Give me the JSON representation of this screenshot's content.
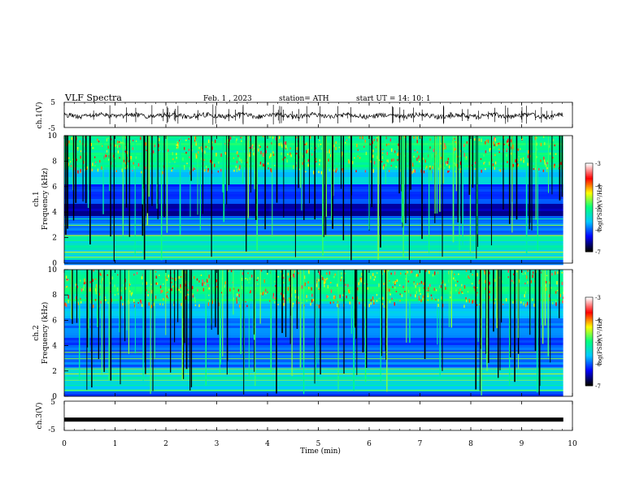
{
  "header": {
    "title": "VLF Spectra",
    "date": "Feb. 1 , 2023",
    "station": "station= ATH",
    "start": "start UT = 14: 10: 1"
  },
  "chart_data": [
    {
      "type": "line",
      "name": "ch1-waveform",
      "ylabel": "ch.1(V)",
      "yticks": [
        "5",
        "-5"
      ],
      "ylim": [
        -5,
        5
      ],
      "xlim": [
        0,
        10
      ],
      "visible_until_min": 9.82
    },
    {
      "type": "heatmap",
      "name": "ch1-spectrogram",
      "ylabel_top": "ch.1",
      "ylabel": "Frequency (kHz)",
      "yticks": [
        "0",
        "2",
        "4",
        "6",
        "8",
        "10"
      ],
      "ylim": [
        0,
        10
      ],
      "xlim": [
        0,
        10
      ],
      "colorbar": {
        "label": "log(PSD)(V²/Hz)",
        "ticks": [
          "-3",
          "-4",
          "-5",
          "-6",
          "-7"
        ],
        "range": [
          -7,
          -3
        ],
        "colors": [
          "#000000",
          "#0000ff",
          "#00c8ff",
          "#00ff80",
          "#ffff00",
          "#ff0000",
          "#ffffff"
        ]
      }
    },
    {
      "type": "heatmap",
      "name": "ch2-spectrogram",
      "ylabel_top": "ch.2",
      "ylabel": "Frequency (kHz)",
      "yticks": [
        "0",
        "2",
        "4",
        "6",
        "8",
        "10"
      ],
      "ylim": [
        0,
        10
      ],
      "xlim": [
        0,
        10
      ],
      "colorbar": {
        "label": "log(PSD)(V²/Hz)",
        "ticks": [
          "-3",
          "-4",
          "-5",
          "-6",
          "-7"
        ],
        "range": [
          -7,
          -3
        ],
        "colors": [
          "#000000",
          "#0000ff",
          "#00c8ff",
          "#00ff80",
          "#ffff00",
          "#ff0000",
          "#ffffff"
        ]
      }
    },
    {
      "type": "line",
      "name": "ch3-waveform",
      "ylabel": "ch.3(V)",
      "yticks": [
        "5",
        "-5"
      ],
      "ylim": [
        -5,
        5
      ],
      "xlim": [
        0,
        10
      ],
      "flat_value": -1.3,
      "visible_until_min": 9.82
    }
  ],
  "xaxis": {
    "label": "Time (min)",
    "ticks": [
      "0",
      "1",
      "2",
      "3",
      "4",
      "5",
      "6",
      "7",
      "8",
      "9",
      "10"
    ]
  }
}
